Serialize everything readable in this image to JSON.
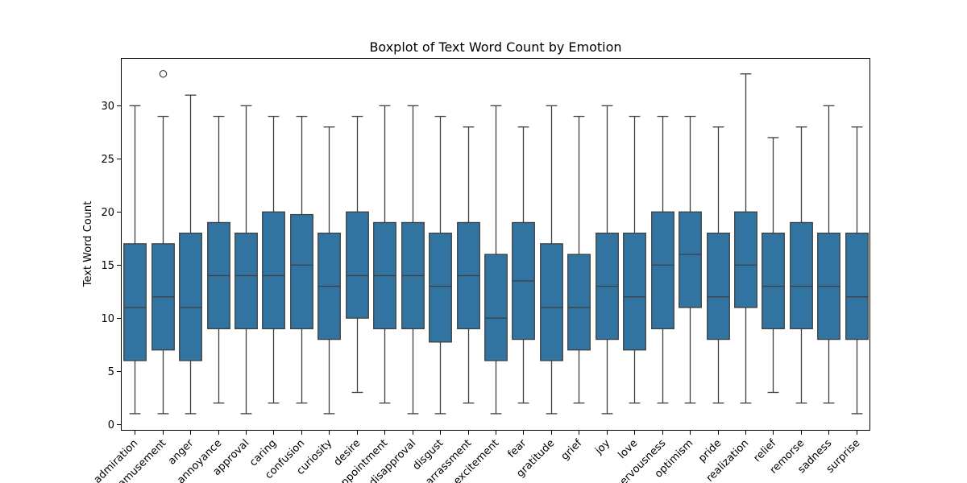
{
  "chart_data": {
    "type": "boxplot",
    "title": "Boxplot of Text Word Count by Emotion",
    "xlabel": "",
    "ylabel": "Text Word Count",
    "ylim": [
      -0.6,
      34.5
    ],
    "yticks": [
      0,
      5,
      10,
      15,
      20,
      25,
      30
    ],
    "box_color": "#3274a1",
    "line_color": "#3f3f3f",
    "grid": false,
    "categories": [
      "admiration",
      "amusement",
      "anger",
      "annoyance",
      "approval",
      "caring",
      "confusion",
      "curiosity",
      "desire",
      "disappointment",
      "disapproval",
      "disgust",
      "embarrassment",
      "excitement",
      "fear",
      "gratitude",
      "grief",
      "joy",
      "love",
      "nervousness",
      "optimism",
      "pride",
      "realization",
      "relief",
      "remorse",
      "sadness",
      "surprise"
    ],
    "boxes": [
      {
        "whisker_low": 1,
        "q1": 6,
        "median": 11,
        "q3": 17,
        "whisker_high": 30,
        "outliers": []
      },
      {
        "whisker_low": 1,
        "q1": 7,
        "median": 12,
        "q3": 17,
        "whisker_high": 29,
        "outliers": [
          33
        ]
      },
      {
        "whisker_low": 1,
        "q1": 6,
        "median": 11,
        "q3": 18,
        "whisker_high": 31,
        "outliers": []
      },
      {
        "whisker_low": 2,
        "q1": 9,
        "median": 14,
        "q3": 19,
        "whisker_high": 29,
        "outliers": []
      },
      {
        "whisker_low": 1,
        "q1": 9,
        "median": 14,
        "q3": 18,
        "whisker_high": 30,
        "outliers": []
      },
      {
        "whisker_low": 2,
        "q1": 9,
        "median": 14,
        "q3": 20,
        "whisker_high": 29,
        "outliers": []
      },
      {
        "whisker_low": 2,
        "q1": 9,
        "median": 15,
        "q3": 19.75,
        "whisker_high": 29,
        "outliers": []
      },
      {
        "whisker_low": 1,
        "q1": 8,
        "median": 13,
        "q3": 18,
        "whisker_high": 28,
        "outliers": []
      },
      {
        "whisker_low": 3,
        "q1": 10,
        "median": 14,
        "q3": 20,
        "whisker_high": 29,
        "outliers": []
      },
      {
        "whisker_low": 2,
        "q1": 9,
        "median": 14,
        "q3": 19,
        "whisker_high": 30,
        "outliers": []
      },
      {
        "whisker_low": 1,
        "q1": 9,
        "median": 14,
        "q3": 19,
        "whisker_high": 30,
        "outliers": []
      },
      {
        "whisker_low": 1,
        "q1": 7.75,
        "median": 13,
        "q3": 18,
        "whisker_high": 29,
        "outliers": []
      },
      {
        "whisker_low": 2,
        "q1": 9,
        "median": 14,
        "q3": 19,
        "whisker_high": 28,
        "outliers": []
      },
      {
        "whisker_low": 1,
        "q1": 6,
        "median": 10,
        "q3": 16,
        "whisker_high": 30,
        "outliers": []
      },
      {
        "whisker_low": 2,
        "q1": 8,
        "median": 13.5,
        "q3": 19,
        "whisker_high": 28,
        "outliers": []
      },
      {
        "whisker_low": 1,
        "q1": 6,
        "median": 11,
        "q3": 17,
        "whisker_high": 30,
        "outliers": []
      },
      {
        "whisker_low": 2,
        "q1": 7,
        "median": 11,
        "q3": 16,
        "whisker_high": 29,
        "outliers": []
      },
      {
        "whisker_low": 1,
        "q1": 8,
        "median": 13,
        "q3": 18,
        "whisker_high": 30,
        "outliers": []
      },
      {
        "whisker_low": 2,
        "q1": 7,
        "median": 12,
        "q3": 18,
        "whisker_high": 29,
        "outliers": []
      },
      {
        "whisker_low": 2,
        "q1": 9,
        "median": 15,
        "q3": 20,
        "whisker_high": 29,
        "outliers": []
      },
      {
        "whisker_low": 2,
        "q1": 11,
        "median": 16,
        "q3": 20,
        "whisker_high": 29,
        "outliers": []
      },
      {
        "whisker_low": 2,
        "q1": 8,
        "median": 12,
        "q3": 18,
        "whisker_high": 28,
        "outliers": []
      },
      {
        "whisker_low": 2,
        "q1": 11,
        "median": 15,
        "q3": 20,
        "whisker_high": 33,
        "outliers": []
      },
      {
        "whisker_low": 3,
        "q1": 9,
        "median": 13,
        "q3": 18,
        "whisker_high": 27,
        "outliers": []
      },
      {
        "whisker_low": 2,
        "q1": 9,
        "median": 13,
        "q3": 19,
        "whisker_high": 28,
        "outliers": []
      },
      {
        "whisker_low": 2,
        "q1": 8,
        "median": 13,
        "q3": 18,
        "whisker_high": 30,
        "outliers": []
      },
      {
        "whisker_low": 1,
        "q1": 8,
        "median": 12,
        "q3": 18,
        "whisker_high": 28,
        "outliers": []
      }
    ]
  }
}
